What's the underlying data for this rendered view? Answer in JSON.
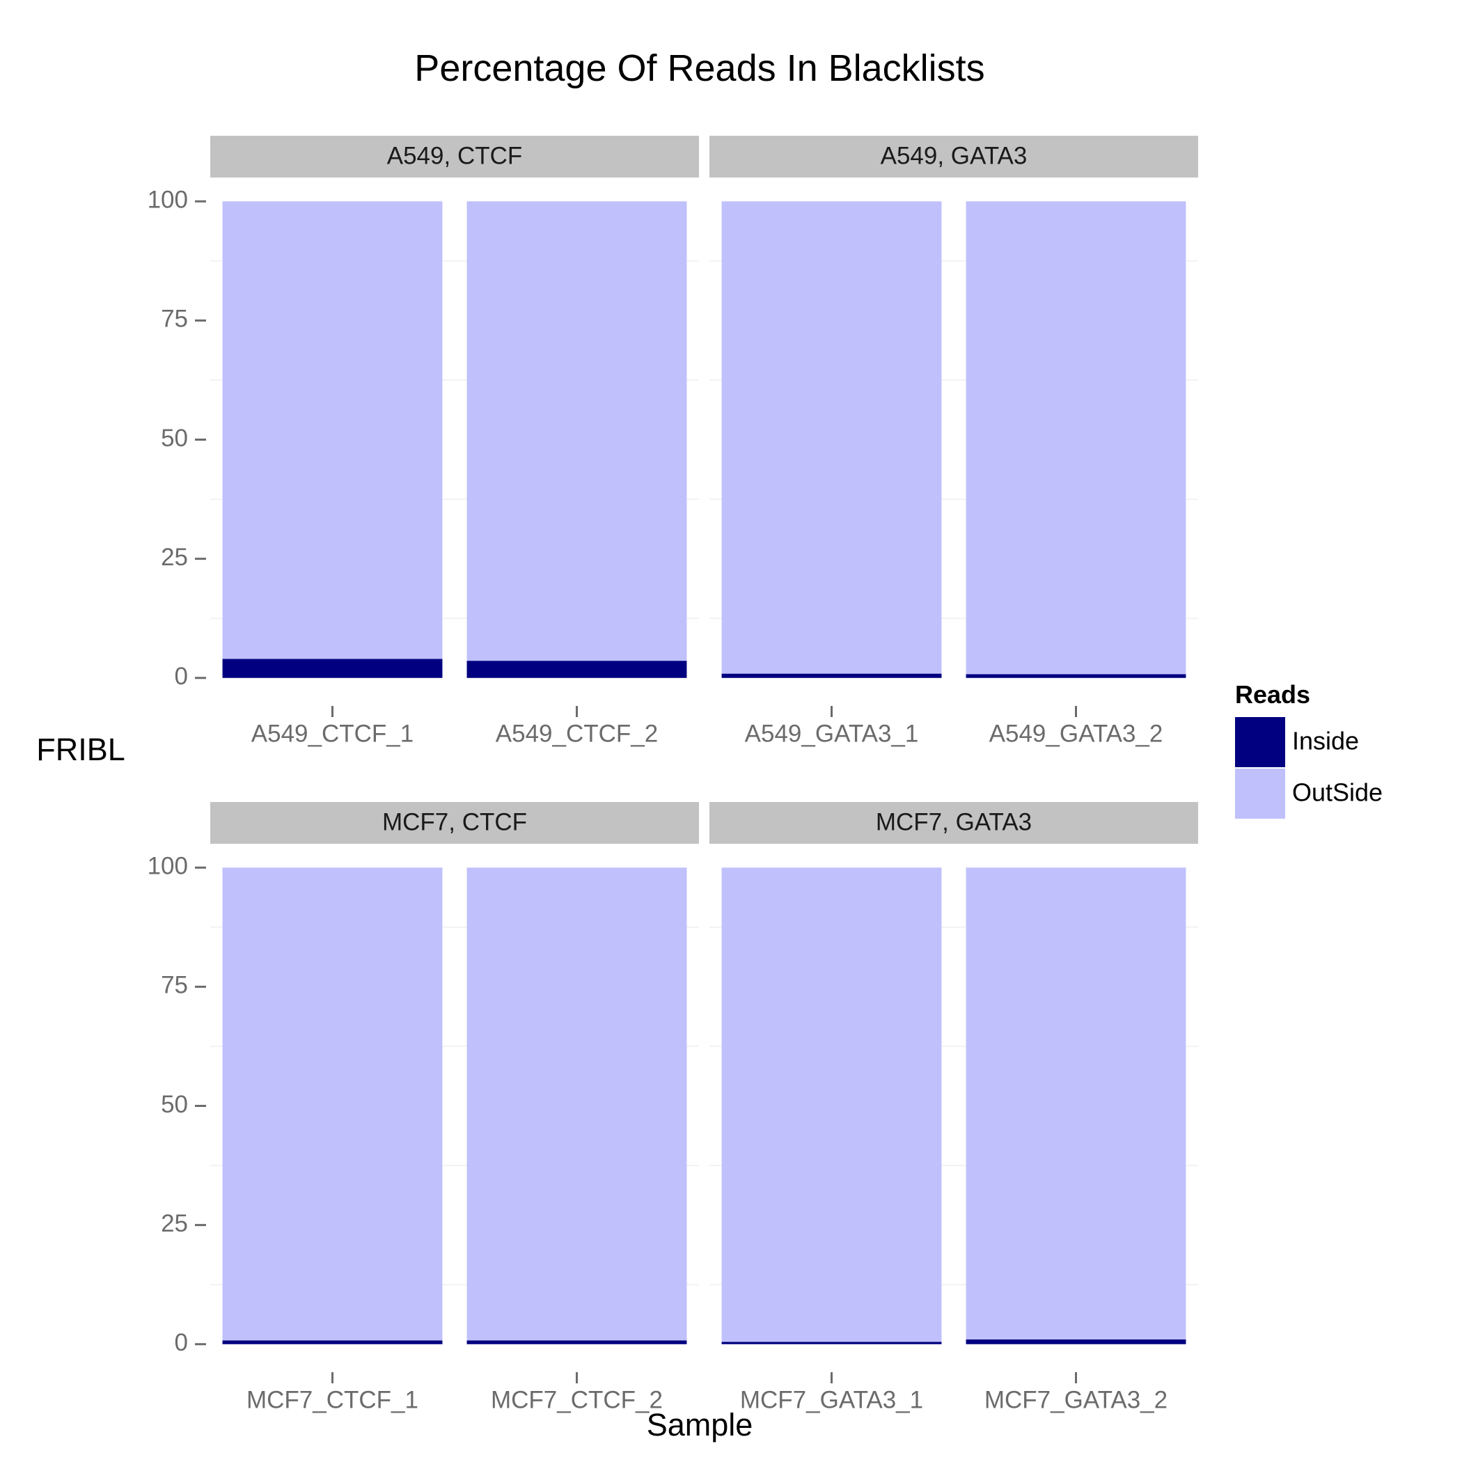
{
  "chart_data": {
    "type": "bar",
    "stacked": true,
    "title": "Percentage Of Reads In Blacklists",
    "xlabel": "Sample",
    "ylabel": "FRIBL",
    "ylim": [
      0,
      100
    ],
    "yticks": [
      "0",
      "25",
      "50",
      "75",
      "100"
    ],
    "grid": true,
    "legend": {
      "title": "Reads",
      "position": "right",
      "entries": [
        "Inside",
        "OutSide"
      ]
    },
    "colors": {
      "Inside": "#000080",
      "OutSide": "#c0c0fc",
      "strip": "#c2c2c2"
    },
    "panels": [
      {
        "strip": "A549, CTCF",
        "categories": [
          "A549_CTCF_1",
          "A549_CTCF_2"
        ],
        "series": [
          {
            "name": "Inside",
            "values": [
              4.0,
              3.6
            ]
          },
          {
            "name": "OutSide",
            "values": [
              96.0,
              96.4
            ]
          }
        ]
      },
      {
        "strip": "A549, GATA3",
        "categories": [
          "A549_GATA3_1",
          "A549_GATA3_2"
        ],
        "series": [
          {
            "name": "Inside",
            "values": [
              0.9,
              0.8
            ]
          },
          {
            "name": "OutSide",
            "values": [
              99.1,
              99.2
            ]
          }
        ]
      },
      {
        "strip": "MCF7, CTCF",
        "categories": [
          "MCF7_CTCF_1",
          "MCF7_CTCF_2"
        ],
        "series": [
          {
            "name": "Inside",
            "values": [
              0.8,
              0.8
            ]
          },
          {
            "name": "OutSide",
            "values": [
              99.2,
              99.2
            ]
          }
        ]
      },
      {
        "strip": "MCF7, GATA3",
        "categories": [
          "MCF7_GATA3_1",
          "MCF7_GATA3_2"
        ],
        "series": [
          {
            "name": "Inside",
            "values": [
              0.5,
              1.0
            ]
          },
          {
            "name": "OutSide",
            "values": [
              99.5,
              99.0
            ]
          }
        ]
      }
    ]
  }
}
